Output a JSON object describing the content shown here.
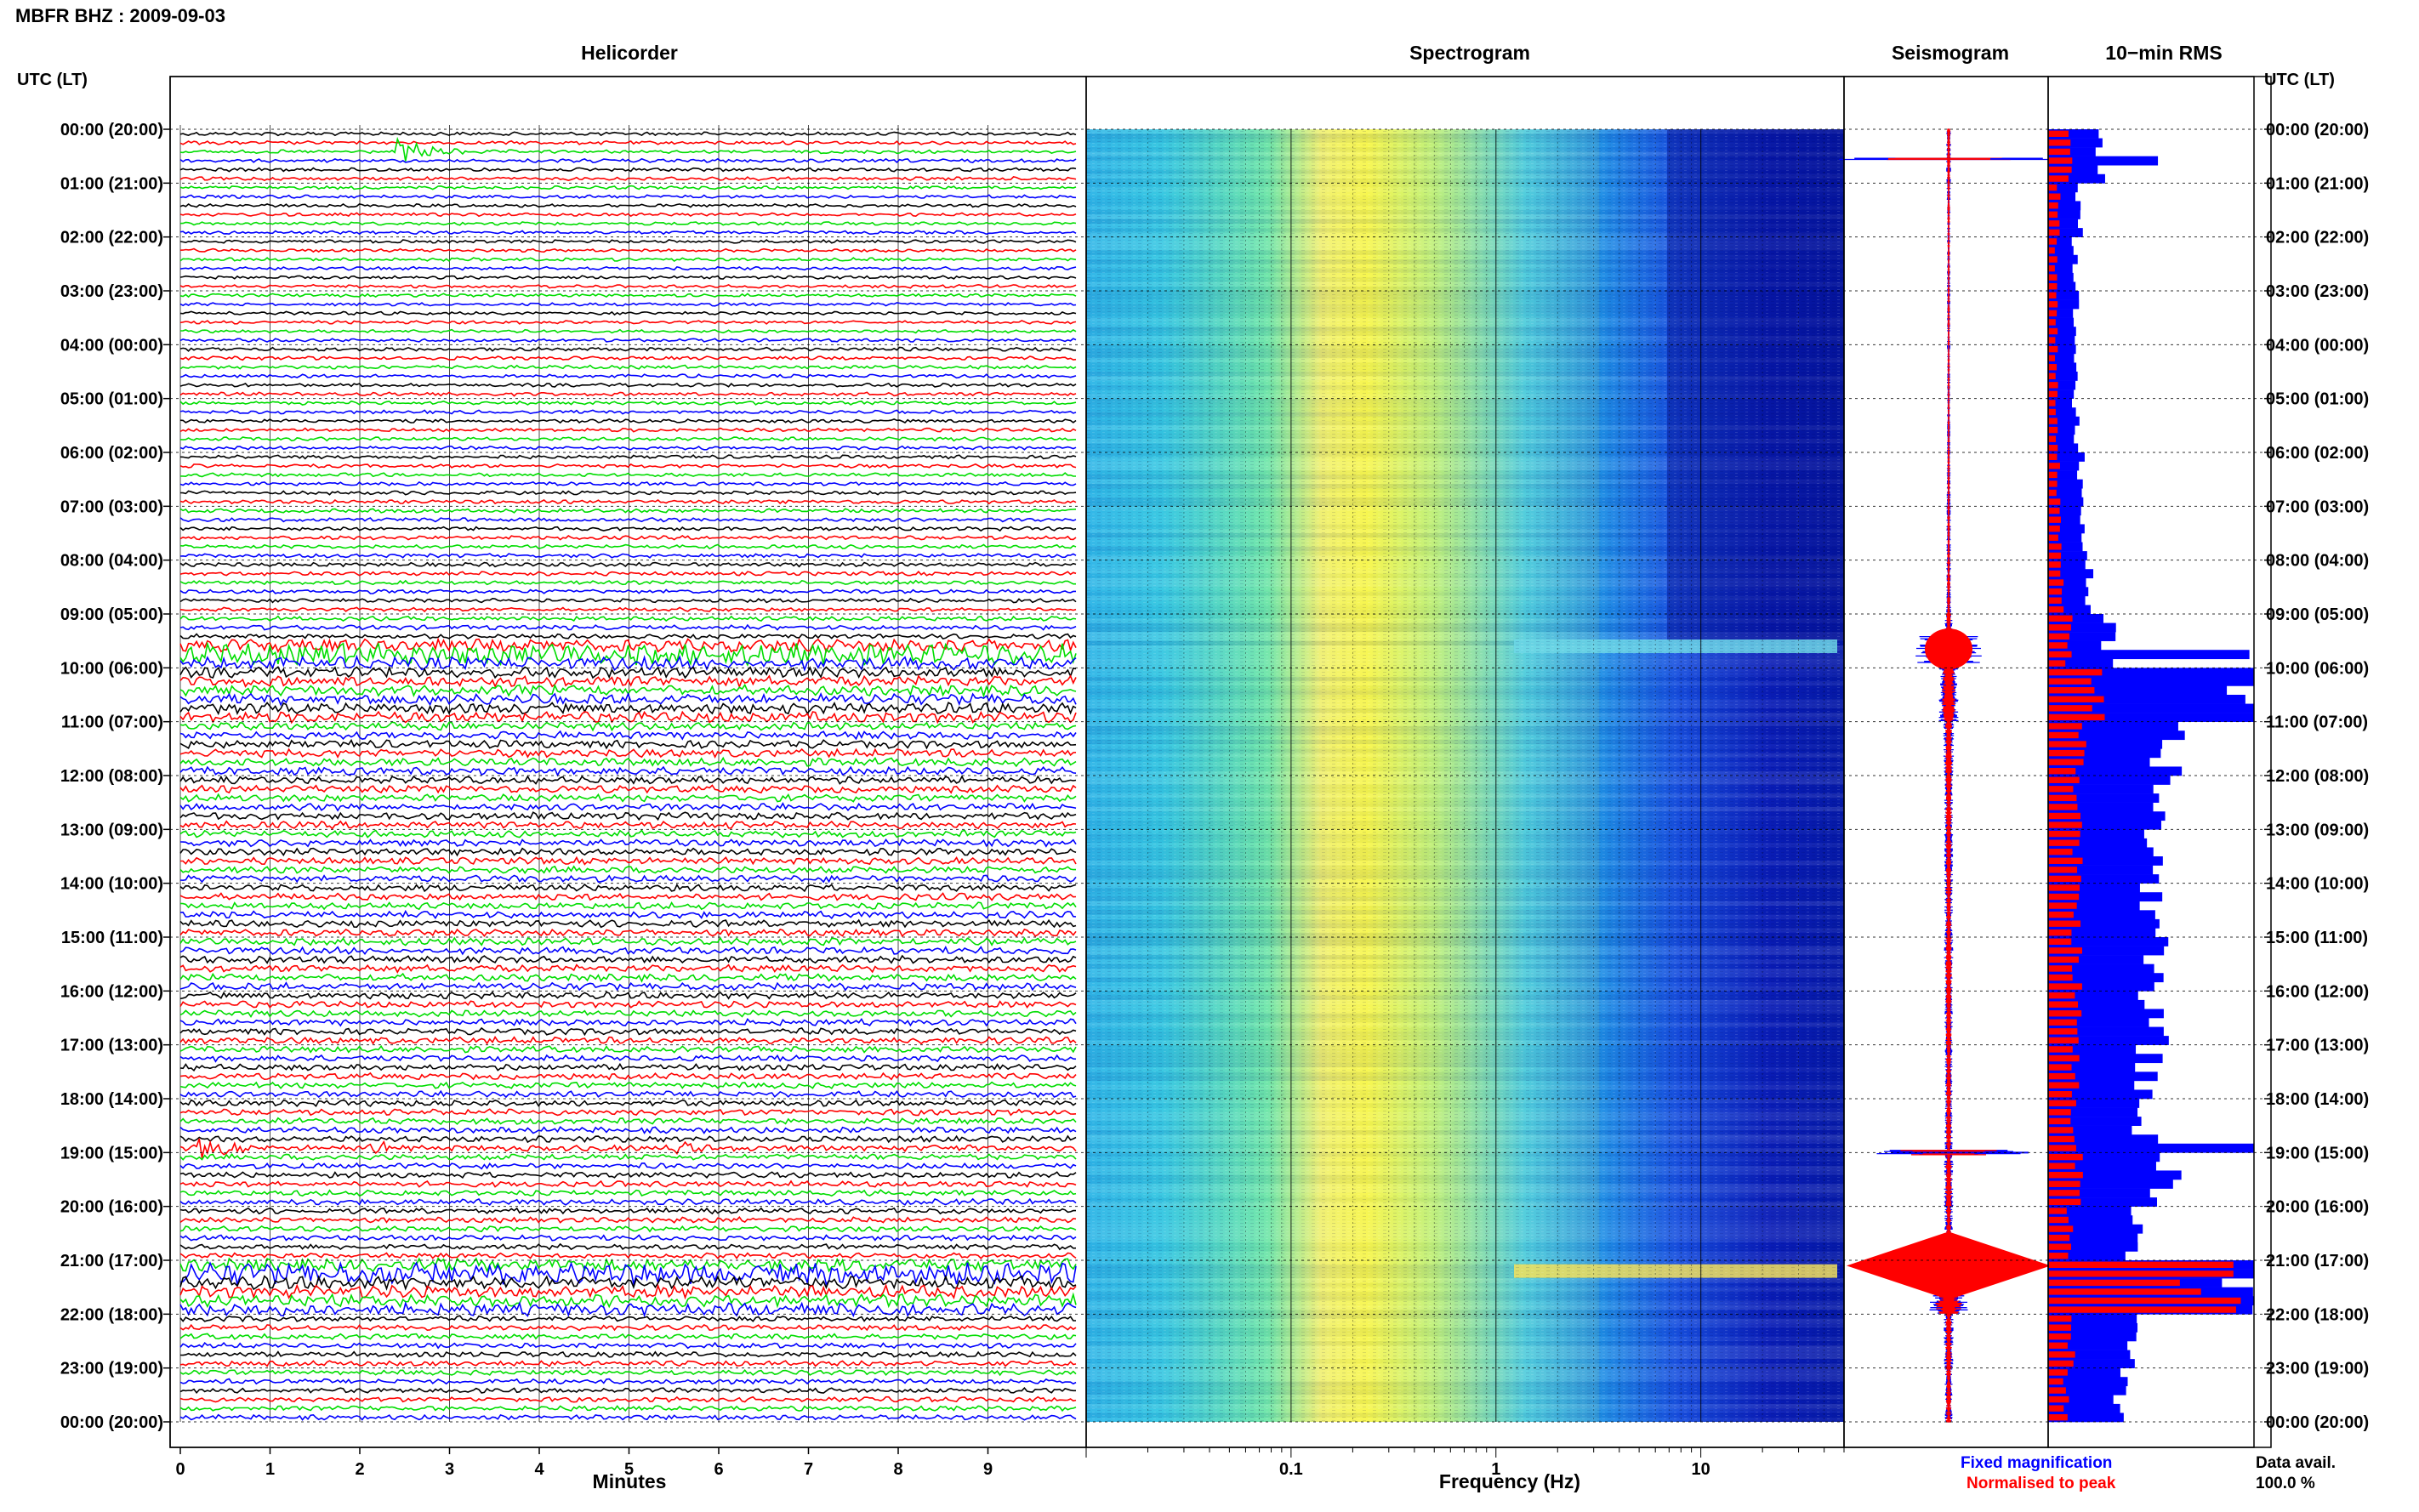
{
  "header": {
    "title": "MBFR BHZ : 2009-09-03",
    "utc_label_left": "UTC (LT)",
    "utc_label_right": "UTC (LT)"
  },
  "panels": {
    "helicorder": "Helicorder",
    "spectrogram": "Spectrogram",
    "seismogram": "Seismogram",
    "rms": "10−min RMS"
  },
  "axes": {
    "minutes_label": "Minutes",
    "frequency_label": "Frequency (Hz)",
    "minute_ticks": [
      "0",
      "1",
      "2",
      "3",
      "4",
      "5",
      "6",
      "7",
      "8",
      "9"
    ],
    "frequency_ticks": [
      "0.1",
      "1",
      "10"
    ]
  },
  "time_labels": [
    "00:00 (20:00)",
    "01:00 (21:00)",
    "02:00 (22:00)",
    "03:00 (23:00)",
    "04:00 (00:00)",
    "05:00 (01:00)",
    "06:00 (02:00)",
    "07:00 (03:00)",
    "08:00 (04:00)",
    "09:00 (05:00)",
    "10:00 (06:00)",
    "11:00 (07:00)",
    "12:00 (08:00)",
    "13:00 (09:00)",
    "14:00 (10:00)",
    "15:00 (11:00)",
    "16:00 (12:00)",
    "17:00 (13:00)",
    "18:00 (14:00)",
    "19:00 (15:00)",
    "20:00 (16:00)",
    "21:00 (17:00)",
    "22:00 (18:00)",
    "23:00 (19:00)",
    "00:00 (20:00)"
  ],
  "legend": {
    "fixed": "Fixed magnification",
    "normalised": "Normalised to peak",
    "data_avail": "Data avail.",
    "data_pct": "100.0 %"
  },
  "colors": {
    "trace_cycle": [
      "#000000",
      "#ff0000",
      "#00dd00",
      "#0000ff"
    ],
    "fixed": "#0000ff",
    "normalised": "#ff0000"
  },
  "chart_data": [
    {
      "type": "line",
      "name": "helicorder",
      "xlabel": "Minutes",
      "xlim": [
        0,
        10
      ],
      "rows": 144,
      "row_minutes": 10,
      "noise_by_hour": [
        1,
        0.9,
        0.9,
        0.9,
        1,
        1,
        1,
        1.1,
        1.1,
        1.3,
        3,
        2.2,
        2,
        1.9,
        1.9,
        2,
        1.8,
        1.7,
        1.7,
        1.6,
        1.5,
        3.5,
        1.5,
        1.4
      ],
      "events": [
        {
          "hour": 0.3,
          "minute": 2.4,
          "amp": 8
        },
        {
          "hour": 9.6,
          "minute": 0,
          "amp": 6,
          "band": true
        },
        {
          "hour": 18.8,
          "minute": 0.2,
          "amp": 7
        },
        {
          "hour": 18.8,
          "minute": 2.1,
          "amp": 5
        },
        {
          "hour": 18.8,
          "minute": 5.5,
          "amp": 5
        },
        {
          "hour": 21.2,
          "minute": 0,
          "amp": 6,
          "band": true
        }
      ]
    },
    {
      "type": "heatmap",
      "name": "spectrogram",
      "xlabel": "Frequency (Hz)",
      "xscale": "log",
      "xlim": [
        0.01,
        50
      ],
      "peak_band_hz": [
        0.2,
        0.8
      ],
      "hot_rows_hour": [
        9.6,
        21.2
      ]
    },
    {
      "type": "line",
      "name": "seismogram",
      "envelope_by_hour": [
        1,
        0.8,
        0.7,
        0.7,
        0.7,
        0.7,
        0.8,
        0.9,
        1,
        1.6,
        4,
        2.2,
        1.8,
        1.8,
        1.7,
        1.9,
        1.7,
        1.6,
        1.6,
        2,
        1.7,
        8,
        2,
        1.6
      ]
    },
    {
      "type": "bar",
      "name": "rms",
      "fixed_by_hour": [
        1.2,
        0.7,
        0.6,
        0.6,
        0.6,
        0.6,
        0.7,
        0.8,
        0.9,
        1.3,
        4.2,
        2.6,
        2.4,
        2.3,
        2.3,
        2.4,
        2.3,
        2.2,
        2.1,
        2.6,
        1.9,
        4.5,
        1.8,
        1.6
      ],
      "normalised_by_hour": [
        0.5,
        0.25,
        0.2,
        0.2,
        0.2,
        0.2,
        0.25,
        0.3,
        0.35,
        0.5,
        1.3,
        0.8,
        0.7,
        0.7,
        0.7,
        0.7,
        0.7,
        0.65,
        0.6,
        0.8,
        0.55,
        4,
        0.55,
        0.45
      ]
    }
  ]
}
